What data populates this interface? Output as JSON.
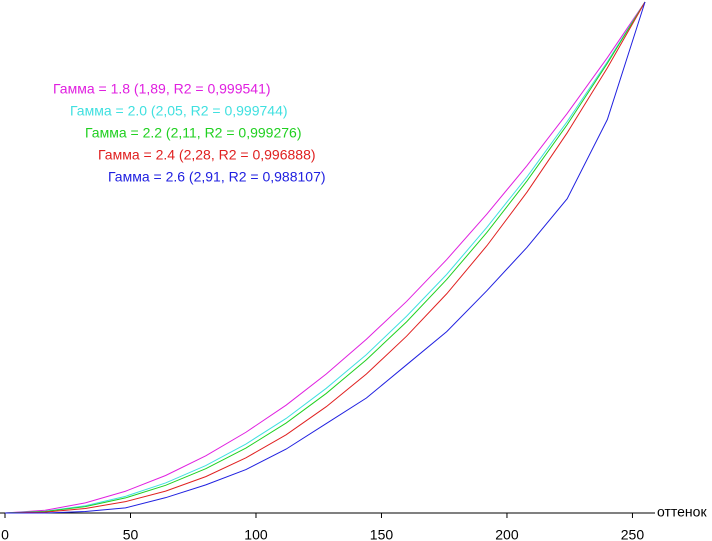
{
  "chart_data": {
    "type": "line",
    "x_label": "оттенок",
    "x": [
      0,
      16,
      32,
      48,
      64,
      80,
      96,
      112,
      128,
      144,
      160,
      176,
      192,
      208,
      224,
      240,
      255
    ],
    "xlim": [
      0,
      255
    ],
    "xticks": [
      0,
      50,
      100,
      150,
      200,
      250
    ],
    "ylim": [
      0,
      1
    ],
    "series": [
      {
        "name": "Гамма = 1.8 (1,89, R2 = 0,999541)",
        "color": "#e020e0",
        "values": [
          0,
          0.0053,
          0.0198,
          0.0426,
          0.0734,
          0.112,
          0.158,
          0.211,
          0.272,
          0.34,
          0.414,
          0.496,
          0.585,
          0.68,
          0.782,
          0.891,
          1
        ]
      },
      {
        "name": "Гамма = 2.0 (2,05, R2 = 0,999744)",
        "color": "#40e0e0",
        "values": [
          0,
          0.0034,
          0.0142,
          0.0326,
          0.0588,
          0.0929,
          0.135,
          0.185,
          0.244,
          0.31,
          0.385,
          0.467,
          0.559,
          0.658,
          0.766,
          0.883,
          1
        ]
      },
      {
        "name": "Гамма = 2.2 (2,11, R2 = 0,999276)",
        "color": "#20d020",
        "values": [
          0,
          0.0029,
          0.0125,
          0.0295,
          0.0542,
          0.0867,
          0.127,
          0.176,
          0.234,
          0.3,
          0.374,
          0.457,
          0.549,
          0.65,
          0.76,
          0.88,
          1
        ]
      },
      {
        "name": "Гамма = 2.4 (2,28, R2 = 0,996888)",
        "color": "#e02020",
        "values": [
          0,
          0.0018,
          0.0088,
          0.0222,
          0.0428,
          0.0712,
          0.108,
          0.153,
          0.208,
          0.272,
          0.346,
          0.429,
          0.523,
          0.628,
          0.744,
          0.871,
          1
        ]
      },
      {
        "name": "Гамма = 2.6 (2,91, R2 = 0,988107)",
        "color": "#2020e0",
        "values": [
          0,
          0,
          0.003,
          0.01,
          0.03,
          0.055,
          0.085,
          0.125,
          0.175,
          0.225,
          0.29,
          0.355,
          0.435,
          0.52,
          0.615,
          0.77,
          1
        ]
      }
    ]
  }
}
